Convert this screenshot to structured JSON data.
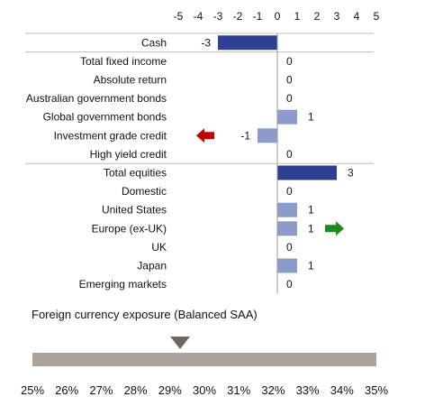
{
  "chart_data": {
    "type": "bar",
    "orientation": "horizontal",
    "xlim": [
      -5,
      5
    ],
    "x_ticks": [
      "-5",
      "-4",
      "-3",
      "-2",
      "-1",
      "0",
      "1",
      "2",
      "3",
      "4",
      "5"
    ],
    "categories": [
      "Cash",
      "Total fixed income",
      "Absolute return",
      "Australian government bonds",
      "Global government bonds",
      "Investment grade credit",
      "High yield credit",
      "Total equities",
      "Domestic",
      "United States",
      "Europe (ex-UK)",
      "UK",
      "Japan",
      "Emerging markets"
    ],
    "values": [
      -3,
      0,
      0,
      0,
      1,
      -1,
      0,
      3,
      0,
      1,
      1,
      0,
      1,
      0
    ],
    "value_labels": [
      "-3",
      "0",
      "0",
      "0",
      "1",
      "-1",
      "0",
      "3",
      "0",
      "1",
      "1",
      "0",
      "1",
      "0"
    ],
    "category_level": [
      "total",
      "total",
      "sub",
      "sub",
      "sub",
      "sub",
      "sub",
      "total",
      "sub",
      "sub",
      "sub",
      "sub",
      "sub",
      "sub"
    ],
    "colors": {
      "total": "#2e3f8f",
      "sub": "#8c9bc9",
      "down_arrow": "#c00000",
      "up_arrow": "#1a8a1a",
      "gridline": "#bfbfbf"
    },
    "arrows": [
      {
        "category": "Investment grade credit",
        "direction": "left",
        "color": "#c00000",
        "icon": "red-left-arrow-icon"
      },
      {
        "category": "Europe (ex-UK)",
        "direction": "right",
        "color": "#1a8a1a",
        "icon": "green-right-arrow-icon"
      }
    ],
    "grid": false
  },
  "gauge": {
    "title": "Foreign currency exposure (Balanced SAA)",
    "ticks": [
      "25%",
      "26%",
      "27%",
      "28%",
      "29%",
      "30%",
      "31%",
      "32%",
      "33%",
      "34%",
      "35%"
    ],
    "range": [
      25,
      35
    ],
    "pointer_value": 29.3,
    "pointer_icon": "down-triangle-pointer-icon",
    "bar_color": "#aba39c",
    "pointer_color": "#6e6862"
  }
}
